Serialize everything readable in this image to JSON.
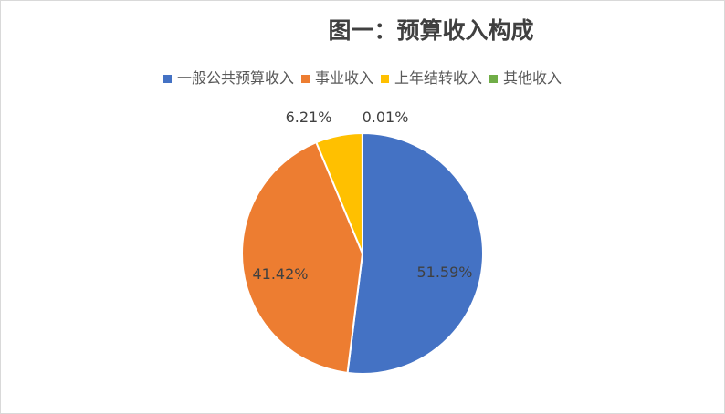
{
  "chart_data": {
    "type": "pie",
    "title": "图一：预算收入构成",
    "categories": [
      "一般公共预算收入",
      "事业收入",
      "上年结转收入",
      "其他收入"
    ],
    "values": [
      51.59,
      41.42,
      6.21,
      0.01
    ],
    "labels": [
      "51.59%",
      "41.42%",
      "6.21%",
      "0.01%"
    ],
    "colors": [
      "#4472c4",
      "#ed7d31",
      "#ffc000",
      "#70ad47"
    ],
    "legend": "top"
  }
}
